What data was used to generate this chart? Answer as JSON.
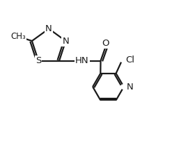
{
  "bg_color": "#ffffff",
  "line_color": "#1a1a1a",
  "text_color": "#1a1a1a",
  "line_width": 1.6,
  "font_size": 9.5,
  "figsize": [
    2.47,
    2.09
  ],
  "dpi": 100,
  "xlim": [
    0.0,
    10.0
  ],
  "ylim": [
    0.0,
    8.5
  ]
}
